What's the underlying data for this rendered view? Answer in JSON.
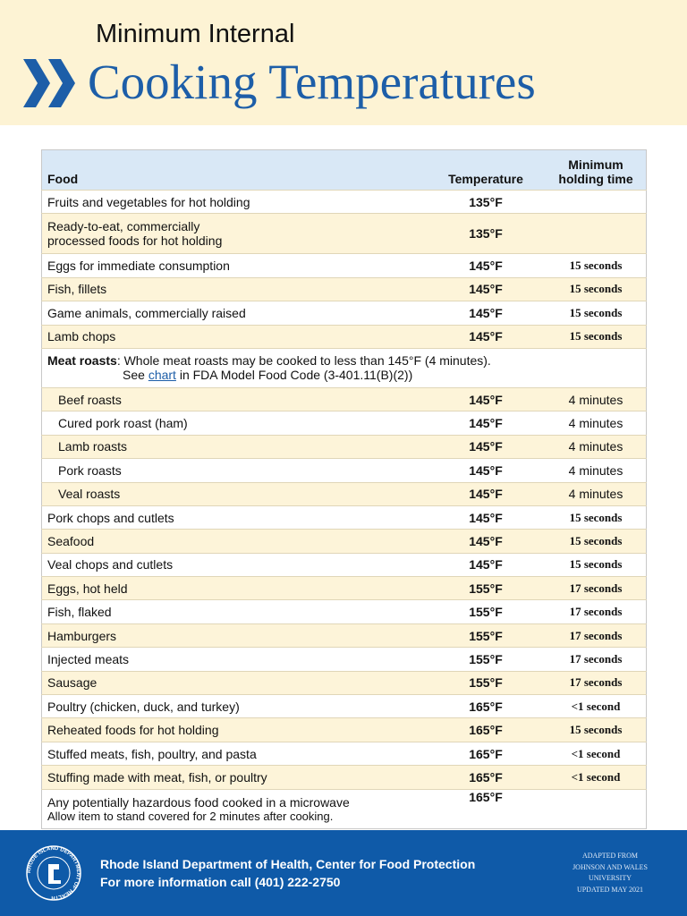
{
  "header": {
    "title_line1": "Minimum Internal",
    "title_line2": "Cooking Temperatures"
  },
  "table": {
    "columns": [
      "Food",
      "Temperature",
      "Minimum holding time"
    ],
    "rows": [
      {
        "food": "Fruits and vegetables for hot holding",
        "temp": "135°F"
      },
      {
        "food": "Ready-to-eat, commercially processed foods for hot holding",
        "temp": "135°F"
      },
      {
        "food": "Eggs for immediate consumption",
        "temp": "145°F",
        "time": "15 seconds"
      },
      {
        "food": "Fish, fillets",
        "temp": "145°F",
        "time": "15 seconds"
      },
      {
        "food": "Game animals, commercially raised",
        "temp": "145°F",
        "time": "15 seconds"
      },
      {
        "food": "Lamb chops",
        "temp": "145°F",
        "time": "15 seconds"
      },
      {
        "note": {
          "label": "Meat roasts",
          "text": ": Whole meat roasts may be cooked to less than 145°F (4 minutes).",
          "see": "See",
          "link": "chart",
          "after": "in FDA Model Food Code (3-401.11(B)(2))"
        }
      },
      {
        "food": "Beef roasts",
        "temp": "145°F",
        "time": "4 minutes",
        "indent": true
      },
      {
        "food": "Cured pork roast (ham)",
        "temp": "145°F",
        "time": "4 minutes",
        "indent": true
      },
      {
        "food": "Lamb roasts",
        "temp": "145°F",
        "time": "4 minutes",
        "indent": true
      },
      {
        "food": "Pork roasts",
        "temp": "145°F",
        "time": "4 minutes",
        "indent": true
      },
      {
        "food": "Veal roasts",
        "temp": "145°F",
        "time": "4 minutes",
        "indent": true
      },
      {
        "food": "Pork chops and cutlets",
        "temp": "145°F",
        "time": "15 seconds"
      },
      {
        "food": "Seafood",
        "temp": "145°F",
        "time": "15 seconds"
      },
      {
        "food": "Veal chops and cutlets",
        "temp": "145°F",
        "time": "15 seconds"
      },
      {
        "food": "Eggs, hot held",
        "temp": "155°F",
        "time": "17 seconds"
      },
      {
        "food": "Fish, flaked",
        "temp": "155°F",
        "time": "17 seconds"
      },
      {
        "food": "Hamburgers",
        "temp": "155°F",
        "time": "17 seconds"
      },
      {
        "food": "Injected meats",
        "temp": "155°F",
        "time": "17 seconds"
      },
      {
        "food": "Sausage",
        "temp": "155°F",
        "time": "17 seconds"
      },
      {
        "food": "Poultry (chicken, duck, and turkey)",
        "temp": "165°F",
        "time": "<1 second"
      },
      {
        "food": "Reheated foods for hot holding",
        "temp": "165°F",
        "time": "15 seconds"
      },
      {
        "food": "Stuffed meats, fish, poultry, and pasta",
        "temp": "165°F",
        "time": "<1 second"
      },
      {
        "food": "Stuffing made with meat, fish, or poultry",
        "temp": "165°F",
        "time": "<1 second"
      },
      {
        "food": "Any potentially hazardous food cooked in a microwave",
        "subtext": "Allow item to stand covered for 2 minutes after cooking.",
        "temp": "165°F"
      }
    ]
  },
  "footer": {
    "logo_text": "RHODE ISLAND DEPARTMENT OF HEALTH",
    "line1": "Rhode Island Department of Health, Center for Food Protection",
    "line2": "For more information call (401) 222-2750",
    "credit": [
      "ADAPTED FROM",
      "JOHNSON AND WALES",
      "UNIVERSITY",
      "UPDATED MAY 2021"
    ]
  }
}
